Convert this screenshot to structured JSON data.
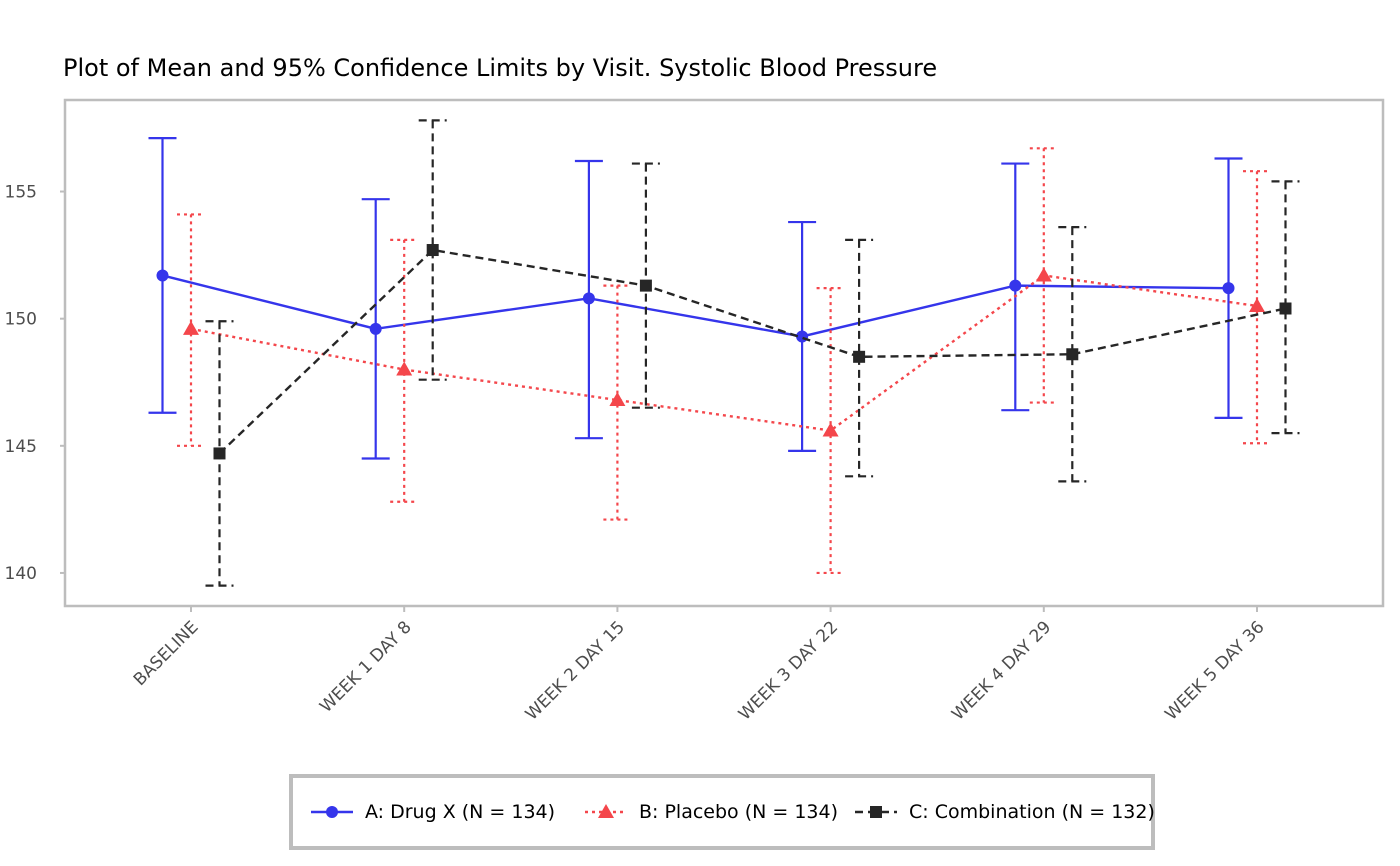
{
  "chart_data": {
    "type": "line",
    "title": "Plot of Mean and 95% Confidence Limits by Visit. Systolic Blood Pressure",
    "xlabel": "",
    "ylabel": "",
    "categories": [
      "BASELINE",
      "WEEK 1 DAY 8",
      "WEEK 2 DAY 15",
      "WEEK 3 DAY 22",
      "WEEK 4 DAY 29",
      "WEEK 5 DAY 36"
    ],
    "ylim": [
      138.7,
      158.6
    ],
    "yticks": [
      140,
      145,
      150,
      155
    ],
    "grid": false,
    "legend_position": "bottom",
    "series": [
      {
        "name": "A: Drug X (N = 134)",
        "color": "#3535EB",
        "marker": "circle",
        "line_style": "solid",
        "mean": [
          151.7,
          149.6,
          150.8,
          149.3,
          151.3,
          151.2
        ],
        "lower": [
          146.3,
          144.5,
          145.3,
          144.8,
          146.4,
          146.1
        ],
        "upper": [
          157.1,
          154.7,
          156.2,
          153.8,
          156.1,
          156.3
        ]
      },
      {
        "name": "B: Placebo (N = 134)",
        "color": "#F4464B",
        "marker": "triangle",
        "line_style": "dotted",
        "mean": [
          149.6,
          148.0,
          146.8,
          145.6,
          151.7,
          150.5
        ],
        "lower": [
          145.0,
          142.8,
          142.1,
          140.0,
          146.7,
          145.1
        ],
        "upper": [
          154.1,
          153.1,
          151.3,
          151.2,
          156.7,
          155.8
        ]
      },
      {
        "name": "C: Combination (N = 132)",
        "color": "#262626",
        "marker": "square",
        "line_style": "dashed",
        "mean": [
          144.7,
          152.7,
          151.3,
          148.5,
          148.6,
          150.4
        ],
        "lower": [
          139.5,
          147.6,
          146.5,
          143.8,
          143.6,
          145.5
        ],
        "upper": [
          149.9,
          157.8,
          156.1,
          153.1,
          153.6,
          155.4
        ]
      }
    ]
  }
}
